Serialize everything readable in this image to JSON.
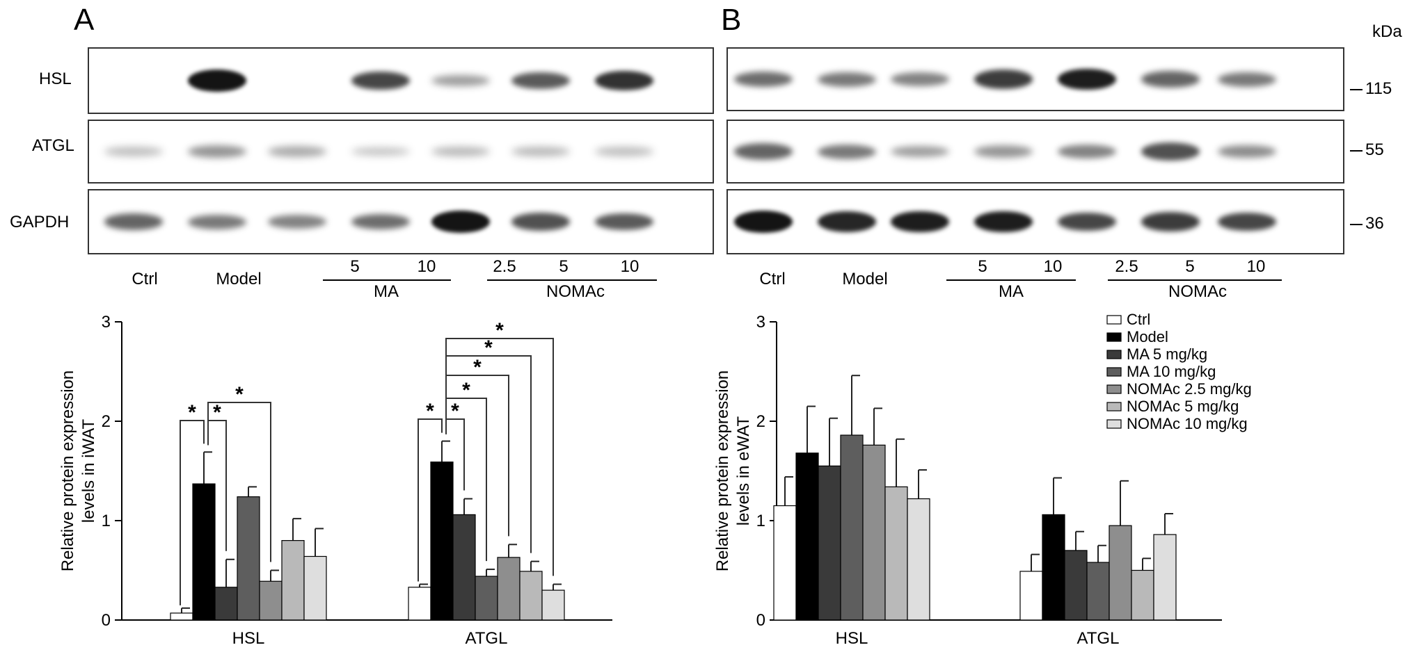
{
  "panels": [
    {
      "letter": "A",
      "blot_rows": [
        "HSL",
        "ATGL",
        "GAPDH"
      ],
      "lanes": [
        "Ctrl",
        "Model",
        "5",
        "10",
        "2.5",
        "5",
        "10"
      ],
      "groups": [
        "MA",
        "NOMAc"
      ],
      "band_intensity": {
        "HSL": [
          0.0,
          1.0,
          0.0,
          0.75,
          0.3,
          0.65,
          0.85
        ],
        "ATGL": [
          0.15,
          0.35,
          0.25,
          0.12,
          0.18,
          0.18,
          0.15
        ],
        "GAPDH": [
          0.6,
          0.5,
          0.45,
          0.55,
          1.0,
          0.7,
          0.65
        ]
      }
    },
    {
      "letter": "B",
      "blot_rows": [
        "HSL",
        "ATGL",
        "GAPDH"
      ],
      "lanes": [
        "Ctrl",
        "Model",
        "5",
        "10",
        "2.5",
        "5",
        "10"
      ],
      "groups": [
        "MA",
        "NOMAc"
      ],
      "kda_header": "kDa",
      "kda_markers": [
        "115",
        "55",
        "36"
      ],
      "band_intensity": {
        "HSL": [
          0.55,
          0.5,
          0.45,
          0.8,
          0.95,
          0.6,
          0.5
        ],
        "ATGL": [
          0.6,
          0.5,
          0.3,
          0.35,
          0.45,
          0.7,
          0.4
        ],
        "GAPDH": [
          1.0,
          0.9,
          0.95,
          0.95,
          0.75,
          0.8,
          0.75
        ]
      }
    }
  ],
  "colors": {
    "Ctrl": "#ffffff",
    "Model": "#000000",
    "MA 5 mg/kg": "#3a3a3a",
    "MA 10 mg/kg": "#5e5e5e",
    "NOMAc 2.5 mg/kg": "#8e8e8e",
    "NOMAc 5 mg/kg": "#b9b9b9",
    "NOMAc 10 mg/kg": "#dedede"
  },
  "chart_data": [
    {
      "type": "bar",
      "ylabel": "Relative protein expression levels in iWAT",
      "ylim": [
        0,
        3
      ],
      "yticks": [
        0,
        1,
        2,
        3
      ],
      "categories": [
        "HSL",
        "ATGL"
      ],
      "series": [
        {
          "name": "Ctrl",
          "values": [
            0.07,
            0.33
          ],
          "errors": [
            0.05,
            0.03
          ]
        },
        {
          "name": "Model",
          "values": [
            1.37,
            1.59
          ],
          "errors": [
            0.32,
            0.21
          ]
        },
        {
          "name": "MA 5 mg/kg",
          "values": [
            0.33,
            1.06
          ],
          "errors": [
            0.28,
            0.16
          ]
        },
        {
          "name": "MA 10 mg/kg",
          "values": [
            1.24,
            0.44
          ],
          "errors": [
            0.1,
            0.07
          ]
        },
        {
          "name": "NOMAc 2.5 mg/kg",
          "values": [
            0.39,
            0.63
          ],
          "errors": [
            0.11,
            0.13
          ]
        },
        {
          "name": "NOMAc 5 mg/kg",
          "values": [
            0.8,
            0.49
          ],
          "errors": [
            0.22,
            0.1
          ]
        },
        {
          "name": "NOMAc 10 mg/kg",
          "values": [
            0.64,
            0.3
          ],
          "errors": [
            0.28,
            0.06
          ]
        }
      ],
      "significance": [
        {
          "category": "HSL",
          "from": 0,
          "to": 1,
          "level": 1,
          "label": "*"
        },
        {
          "category": "HSL",
          "from": 1,
          "to": 2,
          "level": 1,
          "label": "*"
        },
        {
          "category": "HSL",
          "from": 1,
          "to": 4,
          "level": 2,
          "label": "*"
        },
        {
          "category": "ATGL",
          "from": 0,
          "to": 1,
          "level": 1,
          "label": "*"
        },
        {
          "category": "ATGL",
          "from": 1,
          "to": 2,
          "level": 1,
          "label": "*"
        },
        {
          "category": "ATGL",
          "from": 1,
          "to": 3,
          "level": 2,
          "label": "*"
        },
        {
          "category": "ATGL",
          "from": 1,
          "to": 4,
          "level": 3,
          "label": "*"
        },
        {
          "category": "ATGL",
          "from": 1,
          "to": 5,
          "level": 4,
          "label": "*"
        },
        {
          "category": "ATGL",
          "from": 1,
          "to": 6,
          "level": 5,
          "label": "*"
        }
      ]
    },
    {
      "type": "bar",
      "ylabel": "Relative protein expression levels in eWAT",
      "ylim": [
        0,
        3
      ],
      "yticks": [
        0,
        1,
        2,
        3
      ],
      "categories": [
        "HSL",
        "ATGL"
      ],
      "legend_position": "top-right",
      "series": [
        {
          "name": "Ctrl",
          "values": [
            1.15,
            0.49
          ],
          "errors": [
            0.29,
            0.17
          ]
        },
        {
          "name": "Model",
          "values": [
            1.68,
            1.06
          ],
          "errors": [
            0.47,
            0.37
          ]
        },
        {
          "name": "MA 5 mg/kg",
          "values": [
            1.55,
            0.7
          ],
          "errors": [
            0.48,
            0.19
          ]
        },
        {
          "name": "MA 10 mg/kg",
          "values": [
            1.86,
            0.58
          ],
          "errors": [
            0.6,
            0.17
          ]
        },
        {
          "name": "NOMAc 2.5 mg/kg",
          "values": [
            1.76,
            0.95
          ],
          "errors": [
            0.37,
            0.45
          ]
        },
        {
          "name": "NOMAc 5 mg/kg",
          "values": [
            1.34,
            0.5
          ],
          "errors": [
            0.48,
            0.12
          ]
        },
        {
          "name": "NOMAc 10 mg/kg",
          "values": [
            1.22,
            0.86
          ],
          "errors": [
            0.29,
            0.21
          ]
        }
      ]
    }
  ]
}
